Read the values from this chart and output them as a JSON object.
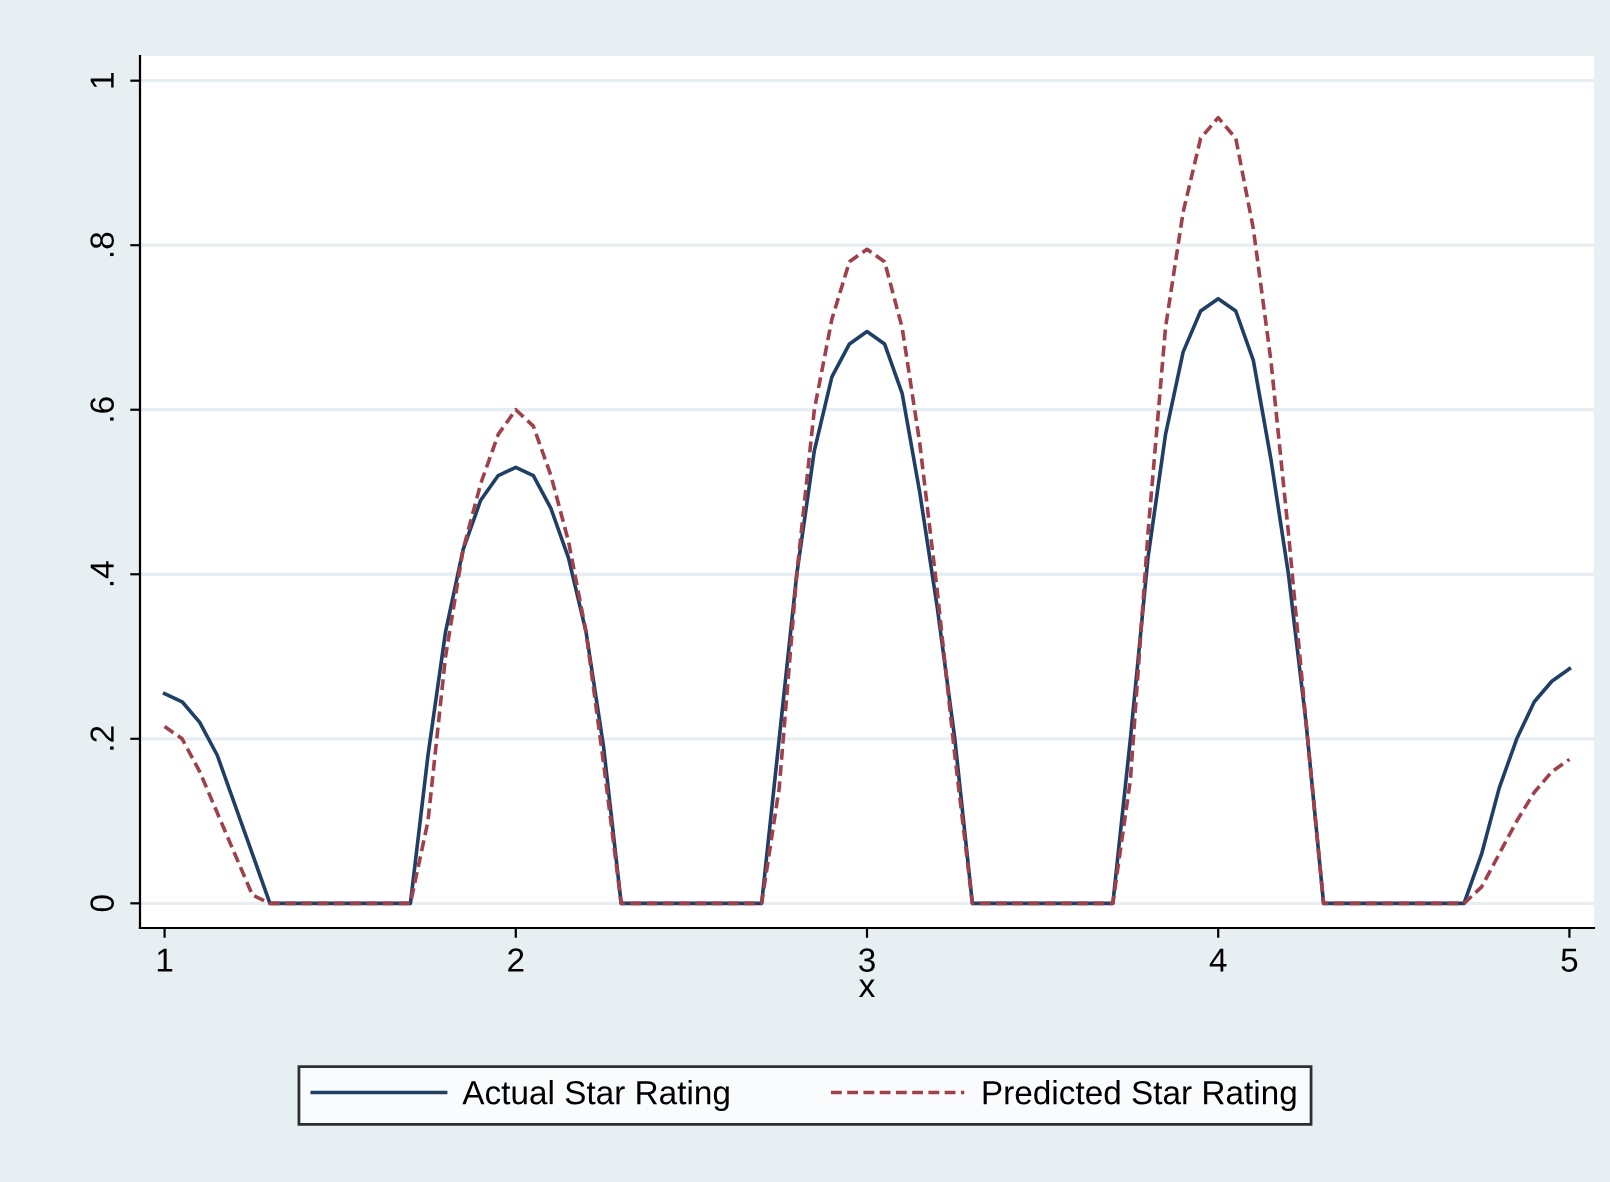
{
  "chart_data": {
    "type": "line",
    "xlabel": "x",
    "x": [
      1,
      1.05,
      1.1,
      1.15,
      1.2,
      1.25,
      1.3,
      1.7,
      1.75,
      1.8,
      1.85,
      1.9,
      1.95,
      2,
      2.05,
      2.1,
      2.15,
      2.2,
      2.25,
      2.3,
      2.7,
      2.75,
      2.8,
      2.85,
      2.9,
      2.95,
      3,
      3.05,
      3.1,
      3.15,
      3.2,
      3.25,
      3.3,
      3.7,
      3.75,
      3.8,
      3.85,
      3.9,
      3.95,
      4,
      4.05,
      4.1,
      4.15,
      4.2,
      4.25,
      4.3,
      4.7,
      4.75,
      4.8,
      4.85,
      4.9,
      4.95,
      5
    ],
    "series": [
      {
        "name": "Actual Star Rating",
        "color": "#1f3f66",
        "line_style": "solid",
        "values": [
          0.255,
          0.245,
          0.22,
          0.18,
          0.12,
          0.06,
          0,
          0,
          0.18,
          0.33,
          0.43,
          0.49,
          0.52,
          0.53,
          0.52,
          0.48,
          0.42,
          0.33,
          0.19,
          0,
          0,
          0.2,
          0.4,
          0.55,
          0.64,
          0.68,
          0.695,
          0.68,
          0.62,
          0.5,
          0.36,
          0.2,
          0,
          0,
          0.2,
          0.42,
          0.57,
          0.67,
          0.72,
          0.735,
          0.72,
          0.66,
          0.54,
          0.4,
          0.22,
          0,
          0,
          0.06,
          0.14,
          0.2,
          0.245,
          0.27,
          0.285
        ]
      },
      {
        "name": "Predicted Star Rating",
        "color": "#a0404a",
        "line_style": "dashed",
        "values": [
          0.215,
          0.2,
          0.16,
          0.11,
          0.06,
          0.01,
          0,
          0,
          0.1,
          0.3,
          0.43,
          0.51,
          0.57,
          0.6,
          0.58,
          0.52,
          0.44,
          0.33,
          0.17,
          0,
          0,
          0.14,
          0.4,
          0.6,
          0.71,
          0.78,
          0.795,
          0.78,
          0.7,
          0.56,
          0.38,
          0.18,
          0,
          0,
          0.15,
          0.45,
          0.7,
          0.84,
          0.93,
          0.955,
          0.93,
          0.82,
          0.66,
          0.45,
          0.22,
          0,
          0,
          0.02,
          0.06,
          0.1,
          0.135,
          0.16,
          0.175
        ]
      }
    ],
    "xlim": [
      0.93,
      5.07
    ],
    "xticks": [
      1,
      2,
      3,
      4,
      5
    ],
    "ylim": [
      -0.03,
      1.03
    ],
    "yticks": [
      {
        "value": 0,
        "label": "0"
      },
      {
        "value": 0.2,
        "label": ".2"
      },
      {
        "value": 0.4,
        "label": ".4"
      },
      {
        "value": 0.6,
        "label": ".6"
      },
      {
        "value": 0.8,
        "label": ".8"
      },
      {
        "value": 1,
        "label": "1"
      }
    ],
    "grid": "y",
    "legend": "bottom",
    "marker": "none"
  }
}
